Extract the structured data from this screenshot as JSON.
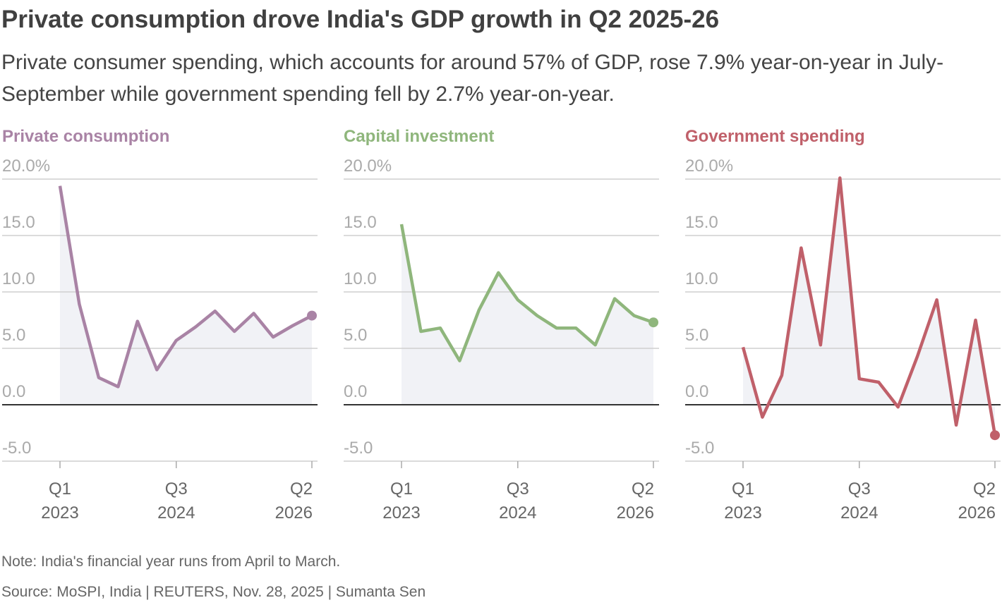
{
  "title": "Private consumption drove India's GDP growth in Q2 2025-26",
  "subtitle": "Private consumer spending, which accounts for around 57% of GDP, rose 7.9% year-on-year in July-September while government spending fell by 2.7% year-on-year.",
  "note": "Note: India's financial year runs from April to March.",
  "source": "Source: MoSPI, India | REUTERS, Nov. 28, 2025 | Sumanta Sen",
  "chart_data": [
    {
      "type": "line",
      "title": "Private consumption",
      "color": "#a983a5",
      "categories": [
        [
          "Q1",
          "2023"
        ],
        null,
        null,
        null,
        null,
        null,
        [
          "Q3",
          "2024"
        ],
        null,
        null,
        null,
        null,
        null,
        null,
        [
          "Q2",
          "2026"
        ]
      ],
      "values": [
        19.4,
        8.9,
        2.4,
        1.6,
        7.4,
        3.1,
        5.7,
        6.9,
        8.3,
        6.5,
        8.1,
        6.0,
        7.0,
        7.9
      ],
      "ylim": [
        -5,
        20
      ],
      "yticks": [
        {
          "value": -5,
          "label": "-5.0"
        },
        {
          "value": 0,
          "label": "0.0"
        },
        {
          "value": 5,
          "label": "5.0"
        },
        {
          "value": 10,
          "label": "10.0"
        },
        {
          "value": 15,
          "label": "15.0"
        },
        {
          "value": 20,
          "label": "20.0%"
        }
      ],
      "grid": true
    },
    {
      "type": "line",
      "title": "Capital investment",
      "color": "#8fb67c",
      "categories": [
        [
          "Q1",
          "2023"
        ],
        null,
        null,
        null,
        null,
        null,
        [
          "Q3",
          "2024"
        ],
        null,
        null,
        null,
        null,
        null,
        null,
        [
          "Q2",
          "2026"
        ]
      ],
      "values": [
        16.0,
        6.5,
        6.8,
        3.9,
        8.4,
        11.7,
        9.3,
        7.9,
        6.8,
        6.8,
        5.3,
        9.4,
        7.9,
        7.3
      ],
      "ylim": [
        -5,
        20
      ],
      "yticks": [
        {
          "value": -5,
          "label": "-5.0"
        },
        {
          "value": 0,
          "label": "0.0"
        },
        {
          "value": 5,
          "label": "5.0"
        },
        {
          "value": 10,
          "label": "10.0"
        },
        {
          "value": 15,
          "label": "15.0"
        },
        {
          "value": 20,
          "label": "20.0%"
        }
      ],
      "grid": true
    },
    {
      "type": "line",
      "title": "Government spending",
      "color": "#c0606a",
      "categories": [
        [
          "Q1",
          "2023"
        ],
        null,
        null,
        null,
        null,
        null,
        [
          "Q3",
          "2024"
        ],
        null,
        null,
        null,
        null,
        null,
        null,
        [
          "Q2",
          "2026"
        ]
      ],
      "values": [
        5.1,
        -1.1,
        2.6,
        13.9,
        5.3,
        20.1,
        2.3,
        2.0,
        -0.2,
        4.3,
        9.3,
        -1.8,
        7.5,
        -2.7
      ],
      "ylim": [
        -5,
        20
      ],
      "yticks": [
        {
          "value": -5,
          "label": "-5.0"
        },
        {
          "value": 0,
          "label": "0.0"
        },
        {
          "value": 5,
          "label": "5.0"
        },
        {
          "value": 10,
          "label": "10.0"
        },
        {
          "value": 15,
          "label": "15.0"
        },
        {
          "value": 20,
          "label": "20.0%"
        }
      ],
      "grid": true
    }
  ]
}
